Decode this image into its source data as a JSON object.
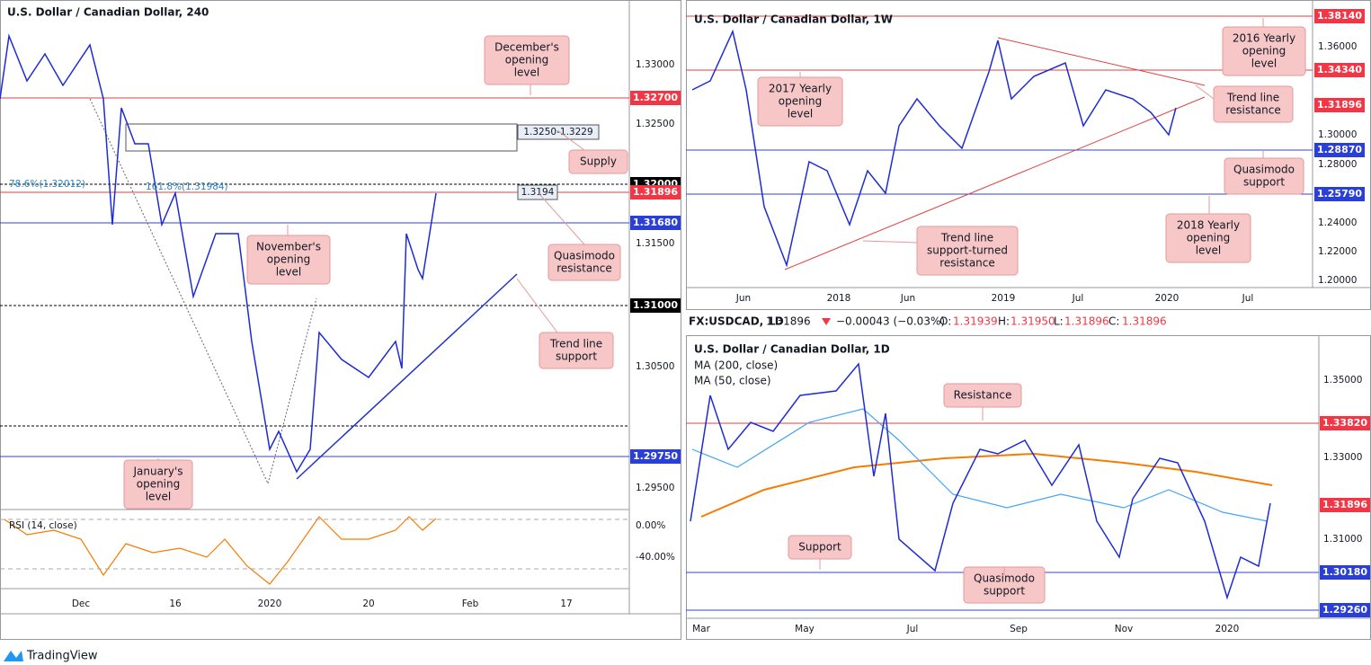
{
  "left": {
    "title": "U.S. Dollar / Canadian Dollar, 240",
    "price_axis": [
      "1.33000",
      "1.32500",
      "1.31500",
      "1.30500",
      "1.29500"
    ],
    "levels": [
      "1.32700",
      "1.32000",
      "1.31896",
      "1.31680",
      "1.31000",
      "1.29750"
    ],
    "time_axis": [
      "Dec",
      "16",
      "2020",
      "20",
      "Feb",
      "17"
    ],
    "fib": [
      "78.6%(1.32012)",
      "161.8%(1.31984)"
    ],
    "supply_zone": "1.3250-1.3229",
    "price_tag": "1.3194",
    "notes": {
      "december": [
        "December's",
        "opening",
        "level"
      ],
      "supply": [
        "Supply"
      ],
      "november": [
        "November's",
        "opening",
        "level"
      ],
      "quasimodo": [
        "Quasimodo",
        "resistance"
      ],
      "trend": [
        "Trend line",
        "support"
      ],
      "january": [
        "January's",
        "opening",
        "level"
      ]
    },
    "rsi": {
      "label": "RSI (14, close)",
      "ticks": [
        "0.00%",
        "-40.00%"
      ]
    }
  },
  "weekly": {
    "title": "U.S. Dollar / Canadian Dollar, 1W",
    "price_axis": [
      "1.36000",
      "1.30000",
      "1.28000",
      "1.24000",
      "1.22000",
      "1.20000"
    ],
    "levels": [
      "1.38140",
      "1.34340",
      "1.31896",
      "1.28870",
      "1.25790"
    ],
    "time_axis": [
      "Jun",
      "2018",
      "Jun",
      "2019",
      "Jul",
      "2020",
      "Jul"
    ],
    "notes": {
      "y2016": [
        "2016 Yearly",
        "opening",
        "level"
      ],
      "y2017": [
        "2017 Yearly",
        "opening",
        "level"
      ],
      "trendres": [
        "Trend line",
        "resistance"
      ],
      "qm": [
        "Quasimodo",
        "support"
      ],
      "y2018": [
        "2018 Yearly",
        "opening",
        "level"
      ],
      "trendsup": [
        "Trend line",
        "support-turned",
        "resistance"
      ]
    }
  },
  "info_bar": {
    "symbol": "FX:USDCAD, 1D",
    "last": "1.31896",
    "change": "−0.00043 (−0.03%)",
    "o_label": "O:",
    "o": "1.31939",
    "h_label": "H:",
    "h": "1.31950",
    "l_label": "L:",
    "l": "1.31896",
    "c_label": "C:",
    "c": "1.31896"
  },
  "daily": {
    "title": "U.S. Dollar / Canadian Dollar, 1D",
    "ma200": "MA (200, close)",
    "ma50": "MA (50, close)",
    "price_axis": [
      "1.35000",
      "1.33000",
      "1.31000"
    ],
    "levels": [
      "1.33820",
      "1.31896",
      "1.30180",
      "1.29260"
    ],
    "time_axis": [
      "Mar",
      "May",
      "Jul",
      "Sep",
      "Nov",
      "2020"
    ],
    "notes": {
      "resistance": [
        "Resistance"
      ],
      "support": [
        "Support"
      ],
      "qm": [
        "Quasimodo",
        "support"
      ]
    }
  },
  "footer": {
    "brand": "TradingView"
  }
}
